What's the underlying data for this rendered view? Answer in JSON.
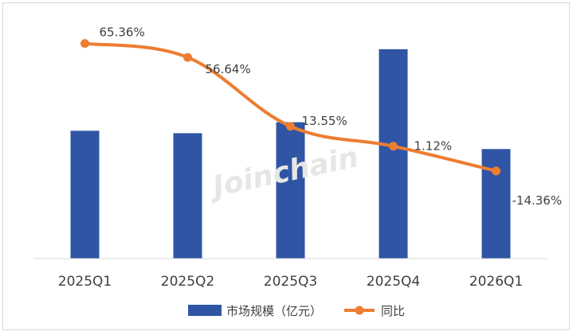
{
  "chart_data": {
    "type": "bar",
    "categories": [
      "2025Q1",
      "2025Q2",
      "2025Q3",
      "2025Q4",
      "2026Q1"
    ],
    "series": [
      {
        "name": "市场规模（亿元）",
        "type": "bar",
        "color": "#2F55A4",
        "values": [
          105,
          103,
          112,
          172,
          90
        ]
      },
      {
        "name": "同比",
        "type": "line",
        "color": "#ED7D31",
        "values": [
          65.36,
          56.64,
          13.55,
          1.12,
          -14.36
        ],
        "labels": [
          "65.36%",
          "56.64%",
          "13.55%",
          "1.12%",
          "-14.36%"
        ]
      }
    ],
    "legend_position": "bottom",
    "grid": false,
    "watermark": "Joinchain"
  }
}
